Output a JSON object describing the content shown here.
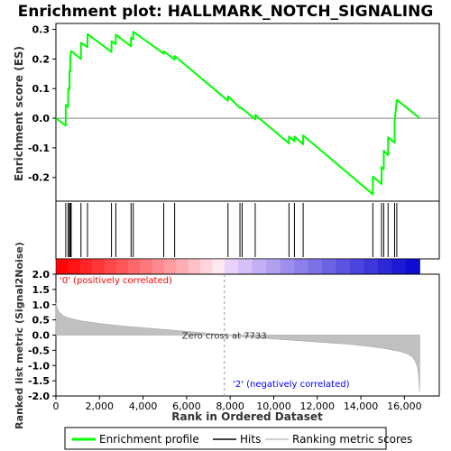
{
  "chart_data": {
    "type": "line",
    "title": "Enrichment plot: HALLMARK_NOTCH_SIGNALING",
    "xlabel": "Rank in Ordered Dataset",
    "top_ylabel": "Enrichment score (ES)",
    "bottom_ylabel": "Ranked list metric (Signal2Noise)",
    "xlim": [
      0,
      17600
    ],
    "x_ticks": [
      0,
      2000,
      4000,
      6000,
      8000,
      10000,
      12000,
      14000,
      16000
    ],
    "x_tick_labels": [
      "0",
      "2,000",
      "4,000",
      "6,000",
      "8,000",
      "10,000",
      "12,000",
      "14,000",
      "16,000"
    ],
    "es_ylim": [
      -0.28,
      0.32
    ],
    "es_ticks": [
      -0.2,
      -0.1,
      0.0,
      0.1,
      0.2,
      0.3
    ],
    "es_tick_labels": [
      "-0.2",
      "-0.1",
      "0.0",
      "0.1",
      "0.2",
      "0.3"
    ],
    "metric_ylim": [
      -2.0,
      2.0
    ],
    "metric_ticks": [
      -2.0,
      -1.5,
      -1.0,
      -0.5,
      0.0,
      0.5,
      1.0,
      1.5,
      2.0
    ],
    "metric_tick_labels": [
      "-2.0",
      "-1.5",
      "-1.0",
      "-0.5",
      "0.0",
      "0.5",
      "1.0",
      "1.5",
      "2.0"
    ],
    "grid": false,
    "n_genes": 16700,
    "zero_cross": 7733,
    "zero_cross_label": "Zero cross at 7733",
    "pos_label": "'0' (positively correlated)",
    "neg_label": "'2' (negatively correlated)",
    "hits": [
      450,
      560,
      620,
      660,
      700,
      1150,
      1450,
      2550,
      2750,
      3450,
      3550,
      4950,
      5450,
      7900,
      8450,
      8550,
      9150,
      10700,
      10950,
      11350,
      14550,
      14950,
      15050,
      15250,
      15550,
      15650
    ],
    "es_profile": {
      "x": [
        0,
        450,
        451,
        560,
        561,
        620,
        621,
        660,
        661,
        700,
        701,
        1150,
        1151,
        1450,
        1451,
        2550,
        2551,
        2750,
        2751,
        3450,
        3451,
        3550,
        3551,
        4950,
        4951,
        5450,
        5451,
        7900,
        7901,
        8450,
        8451,
        8550,
        8551,
        9150,
        9151,
        10700,
        10701,
        10950,
        10951,
        11350,
        11351,
        14550,
        14551,
        14950,
        14951,
        15050,
        15051,
        15250,
        15251,
        15550,
        15551,
        15650,
        15651,
        16700
      ],
      "y": [
        0.0,
        -0.025,
        0.045,
        0.038,
        0.1,
        0.097,
        0.16,
        0.158,
        0.205,
        0.227,
        0.227,
        0.2,
        0.255,
        0.24,
        0.284,
        0.224,
        0.26,
        0.25,
        0.282,
        0.243,
        0.272,
        0.267,
        0.292,
        0.218,
        0.226,
        0.198,
        0.21,
        0.059,
        0.074,
        0.035,
        0.037,
        0.031,
        0.033,
        -0.004,
        0.011,
        -0.085,
        -0.062,
        -0.077,
        -0.062,
        -0.088,
        -0.058,
        -0.257,
        -0.197,
        -0.222,
        -0.165,
        -0.172,
        -0.11,
        -0.125,
        -0.064,
        -0.083,
        -0.01,
        0.062,
        0.062,
        0.0
      ]
    },
    "metric_profile": {
      "x": [
        0,
        30,
        80,
        150,
        300,
        500,
        800,
        1200,
        2000,
        3000,
        4000,
        5000,
        6000,
        7000,
        7733,
        8500,
        9500,
        10500,
        11500,
        12500,
        13500,
        14500,
        15200,
        15700,
        16100,
        16350,
        16500,
        16600,
        16650,
        16700
      ],
      "y": [
        1.05,
        0.95,
        0.85,
        0.75,
        0.65,
        0.58,
        0.52,
        0.46,
        0.38,
        0.3,
        0.24,
        0.18,
        0.12,
        0.06,
        0.0,
        -0.05,
        -0.1,
        -0.15,
        -0.2,
        -0.25,
        -0.3,
        -0.38,
        -0.45,
        -0.52,
        -0.6,
        -0.7,
        -0.85,
        -1.05,
        -1.3,
        -1.85
      ]
    },
    "series": [
      {
        "name": "Enrichment profile",
        "color": "#00ff00"
      },
      {
        "name": "Hits",
        "color": "#000000"
      },
      {
        "name": "Ranking metric scores",
        "color": "#c0c0c0"
      }
    ],
    "pos_color": "#ff0000",
    "neg_color": "#0000ff"
  }
}
